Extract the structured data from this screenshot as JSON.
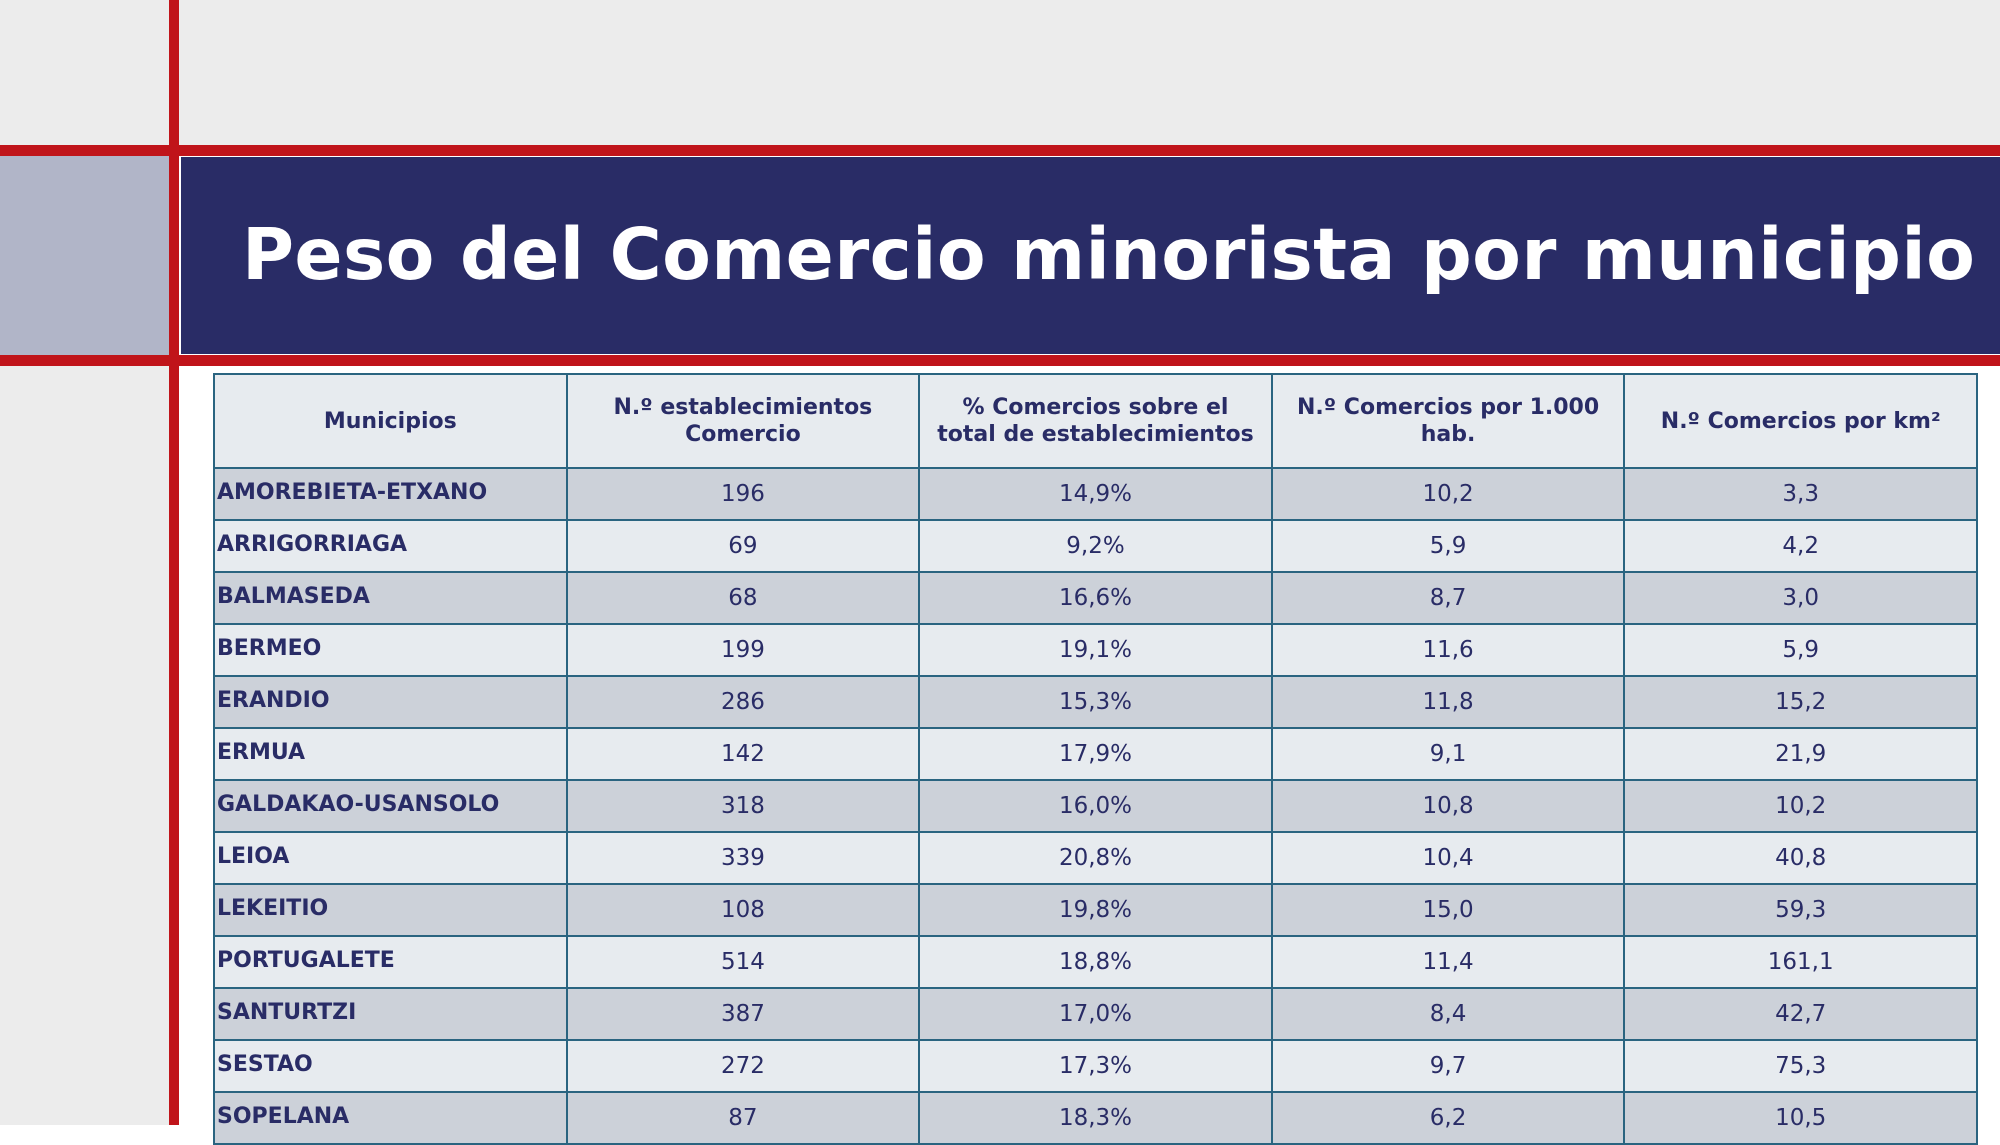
{
  "title": "Peso del Comercio minorista por municipio",
  "colors": {
    "accent_red": "#c0141a",
    "title_bar": "#292c66",
    "text": "#292c66",
    "row_dark": "#ccd1d9",
    "row_light": "#e7ebef"
  },
  "table": {
    "headers": [
      "Municipios",
      "N.º establecimientos Comercio",
      "% Comercios sobre el total de establecimientos",
      "N.º Comercios por 1.000 hab.",
      "N.º Comercios por km²"
    ],
    "rows": [
      [
        "AMOREBIETA-ETXANO",
        "196",
        "14,9%",
        "10,2",
        "3,3"
      ],
      [
        "ARRIGORRIAGA",
        "69",
        "9,2%",
        "5,9",
        "4,2"
      ],
      [
        "BALMASEDA",
        "68",
        "16,6%",
        "8,7",
        "3,0"
      ],
      [
        "BERMEO",
        "199",
        "19,1%",
        "11,6",
        "5,9"
      ],
      [
        "ERANDIO",
        "286",
        "15,3%",
        "11,8",
        "15,2"
      ],
      [
        "ERMUA",
        "142",
        "17,9%",
        "9,1",
        "21,9"
      ],
      [
        "GALDAKAO-USANSOLO",
        "318",
        "16,0%",
        "10,8",
        "10,2"
      ],
      [
        "LEIOA",
        "339",
        "20,8%",
        "10,4",
        "40,8"
      ],
      [
        "LEKEITIO",
        "108",
        "19,8%",
        "15,0",
        "59,3"
      ],
      [
        "PORTUGALETE",
        "514",
        "18,8%",
        "11,4",
        "161,1"
      ],
      [
        "SANTURTZI",
        "387",
        "17,0%",
        "8,4",
        "42,7"
      ],
      [
        "SESTAO",
        "272",
        "17,3%",
        "9,7",
        "75,3"
      ],
      [
        "SOPELANA",
        "87",
        "18,3%",
        "6,2",
        "10,5"
      ]
    ]
  }
}
